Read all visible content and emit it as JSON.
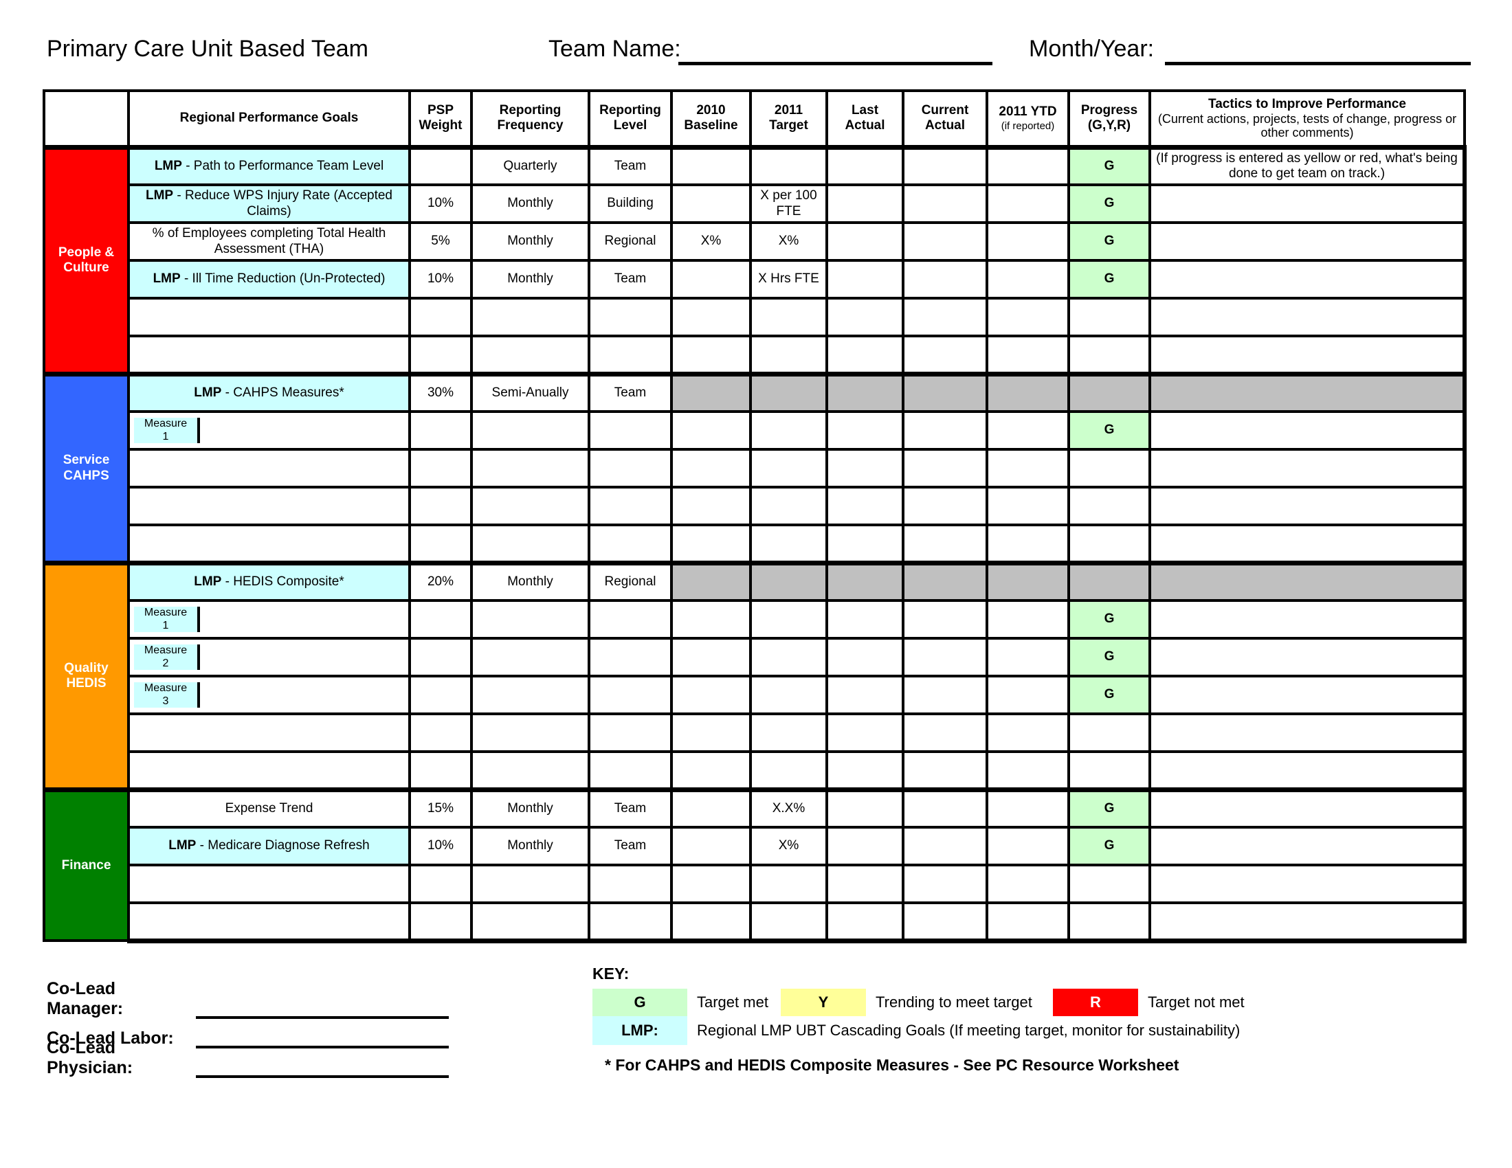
{
  "header": {
    "title": "Primary Care Unit Based Team",
    "team_name_label": "Team Name:",
    "month_year_label": "Month/Year:"
  },
  "table": {
    "columns": {
      "goals": "Regional Performance Goals",
      "psp": [
        "PSP",
        "Weight"
      ],
      "frequency": [
        "Reporting",
        "Frequency"
      ],
      "level": [
        "Reporting",
        "Level"
      ],
      "baseline": [
        "2010",
        "Baseline"
      ],
      "target": [
        "2011",
        "Target"
      ],
      "last_actual": [
        "Last",
        "Actual"
      ],
      "current_actual": [
        "Current",
        "Actual"
      ],
      "ytd_main": "2011 YTD",
      "ytd_sub": "(if reported)",
      "progress": [
        "Progress",
        "(G,Y,R)"
      ],
      "tactics_main": "Tactics to Improve Performance",
      "tactics_sub": "(Current actions, projects, tests of change, progress or other comments)"
    },
    "status_colors": {
      "green": "#CCFFCC",
      "gray": "#C0C0C0",
      "lmp_cyan": "#CCFFFF"
    },
    "sections": [
      {
        "name": "People & Culture",
        "label_lines": [
          "People &",
          "Culture"
        ],
        "color": "#FF0000",
        "rows": [
          {
            "goal_bold": "LMP",
            "goal_text": " - Path to Performance Team Level",
            "goal_bg": "lmp",
            "psp": "",
            "freq": "Quarterly",
            "level": "Team",
            "baseline": "",
            "target": "",
            "last": "",
            "current": "",
            "ytd": "",
            "progress": "G",
            "tactics": "(If progress is entered as yellow or red, what's being done to get team on track.)"
          },
          {
            "goal_bold": "LMP",
            "goal_text": " - Reduce WPS Injury Rate (Accepted Claims)",
            "goal_bg": "lmp",
            "psp": "10%",
            "freq": "Monthly",
            "level": "Building",
            "baseline": "",
            "target": "X per 100 FTE",
            "last": "",
            "current": "",
            "ytd": "",
            "progress": "G",
            "tactics": ""
          },
          {
            "goal_bold": "",
            "goal_text": "% of Employees completing Total Health Assessment (THA)",
            "goal_bg": "",
            "psp": "5%",
            "freq": "Monthly",
            "level": "Regional",
            "baseline": "X%",
            "target": "X%",
            "last": "",
            "current": "",
            "ytd": "",
            "progress": "G",
            "tactics": ""
          },
          {
            "goal_bold": "LMP",
            "goal_text": " - Ill Time Reduction (Un-Protected)",
            "goal_bg": "lmp",
            "psp": "10%",
            "freq": "Monthly",
            "level": "Team",
            "baseline": "",
            "target": "X Hrs FTE",
            "last": "",
            "current": "",
            "ytd": "",
            "progress": "G",
            "tactics": ""
          },
          {},
          {}
        ]
      },
      {
        "name": "Service CAHPS",
        "label_lines": [
          "Service",
          "CAHPS"
        ],
        "color": "#3366FF",
        "rows": [
          {
            "goal_bold": "LMP",
            "goal_text": " - CAHPS Measures*",
            "goal_bg": "lmp",
            "psp": "30%",
            "freq": "Semi-Anually",
            "level": "Team",
            "gray": true
          },
          {
            "measure": [
              "Measure",
              "1"
            ],
            "progress": "G"
          },
          {},
          {},
          {}
        ]
      },
      {
        "name": "Quality HEDIS",
        "label_lines": [
          "Quality",
          "HEDIS"
        ],
        "color": "#FF9900",
        "rows": [
          {
            "goal_bold": "LMP",
            "goal_text": " - HEDIS Composite*",
            "goal_bg": "lmp",
            "psp": "20%",
            "freq": "Monthly",
            "level": "Regional",
            "gray": true
          },
          {
            "measure": [
              "Measure",
              "1"
            ],
            "progress": "G"
          },
          {
            "measure": [
              "Measure",
              "2"
            ],
            "progress": "G"
          },
          {
            "measure": [
              "Measure",
              "3"
            ],
            "progress": "G"
          },
          {},
          {}
        ]
      },
      {
        "name": "Finance",
        "label_lines": [
          "Finance"
        ],
        "color": "#008000",
        "rows": [
          {
            "goal_bold": "",
            "goal_text": "Expense Trend",
            "goal_bg": "",
            "psp": "15%",
            "freq": "Monthly",
            "level": "Team",
            "baseline": "",
            "target": "X.X%",
            "last": "",
            "current": "",
            "ytd": "",
            "progress": "G",
            "tactics": ""
          },
          {
            "goal_bold": "LMP",
            "goal_text": " - Medicare Diagnose Refresh",
            "goal_bg": "lmp",
            "psp": "10%",
            "freq": "Monthly",
            "level": "Team",
            "baseline": "",
            "target": "X%",
            "last": "",
            "current": "",
            "ytd": "",
            "progress": "G",
            "tactics": ""
          },
          {},
          {}
        ]
      }
    ]
  },
  "key": {
    "title": "KEY:",
    "items": [
      {
        "letter": "G",
        "color": "#CCFFCC",
        "text_color": "#000000",
        "label": "Target met"
      },
      {
        "letter": "Y",
        "color": "#FFFF99",
        "text_color": "#000000",
        "label": "Trending to meet target"
      },
      {
        "letter": "R",
        "color": "#FF0000",
        "text_color": "#FFFFFF",
        "label": "Target not met"
      }
    ],
    "lmp": {
      "letter": "LMP:",
      "color": "#CCFFFF",
      "label": "Regional LMP UBT Cascading Goals (If meeting target, monitor for sustainability)"
    },
    "note": "* For CAHPS and HEDIS Composite Measures - See PC Resource Worksheet"
  },
  "coleads": [
    {
      "label": "Co-Lead Manager:"
    },
    {
      "label": "Co-Lead Labor:"
    },
    {
      "label": "Co-Lead Physician:"
    }
  ]
}
